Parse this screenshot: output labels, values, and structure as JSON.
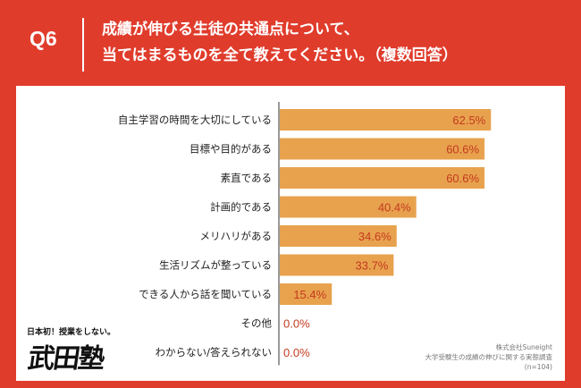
{
  "header": {
    "q_label": "Q6",
    "question_line1": "成績が伸びる生徒の共通点について、",
    "question_line2": "当てはまるものを全て教えてください。（複数回答）"
  },
  "logo": {
    "tagline": "日本初！授業をしない。",
    "name": "武田塾"
  },
  "source": {
    "company": "株式会社Suneight",
    "survey": "大学受験生の成績の伸びに関する実態調査",
    "sample": "(n=104)"
  },
  "colors": {
    "background": "#e03c2c",
    "bar": "#e8a24e",
    "value_label": "#c43a1f"
  },
  "chart_data": {
    "type": "bar",
    "orientation": "horizontal",
    "categories": [
      "自主学習の時間を大切にしている",
      "目標や目的がある",
      "素直である",
      "計画的である",
      "メリハリがある",
      "生活リズムが整っている",
      "できる人から話を聞いている",
      "その他",
      "わからない/答えられない"
    ],
    "values": [
      62.5,
      60.6,
      60.6,
      40.4,
      34.6,
      33.7,
      15.4,
      0.0,
      0.0
    ],
    "value_labels": [
      "62.5%",
      "60.6%",
      "60.6%",
      "40.4%",
      "34.6%",
      "33.7%",
      "15.4%",
      "0.0%",
      "0.0%"
    ],
    "unit": "%",
    "xlim": [
      0,
      100
    ],
    "grid": false
  }
}
